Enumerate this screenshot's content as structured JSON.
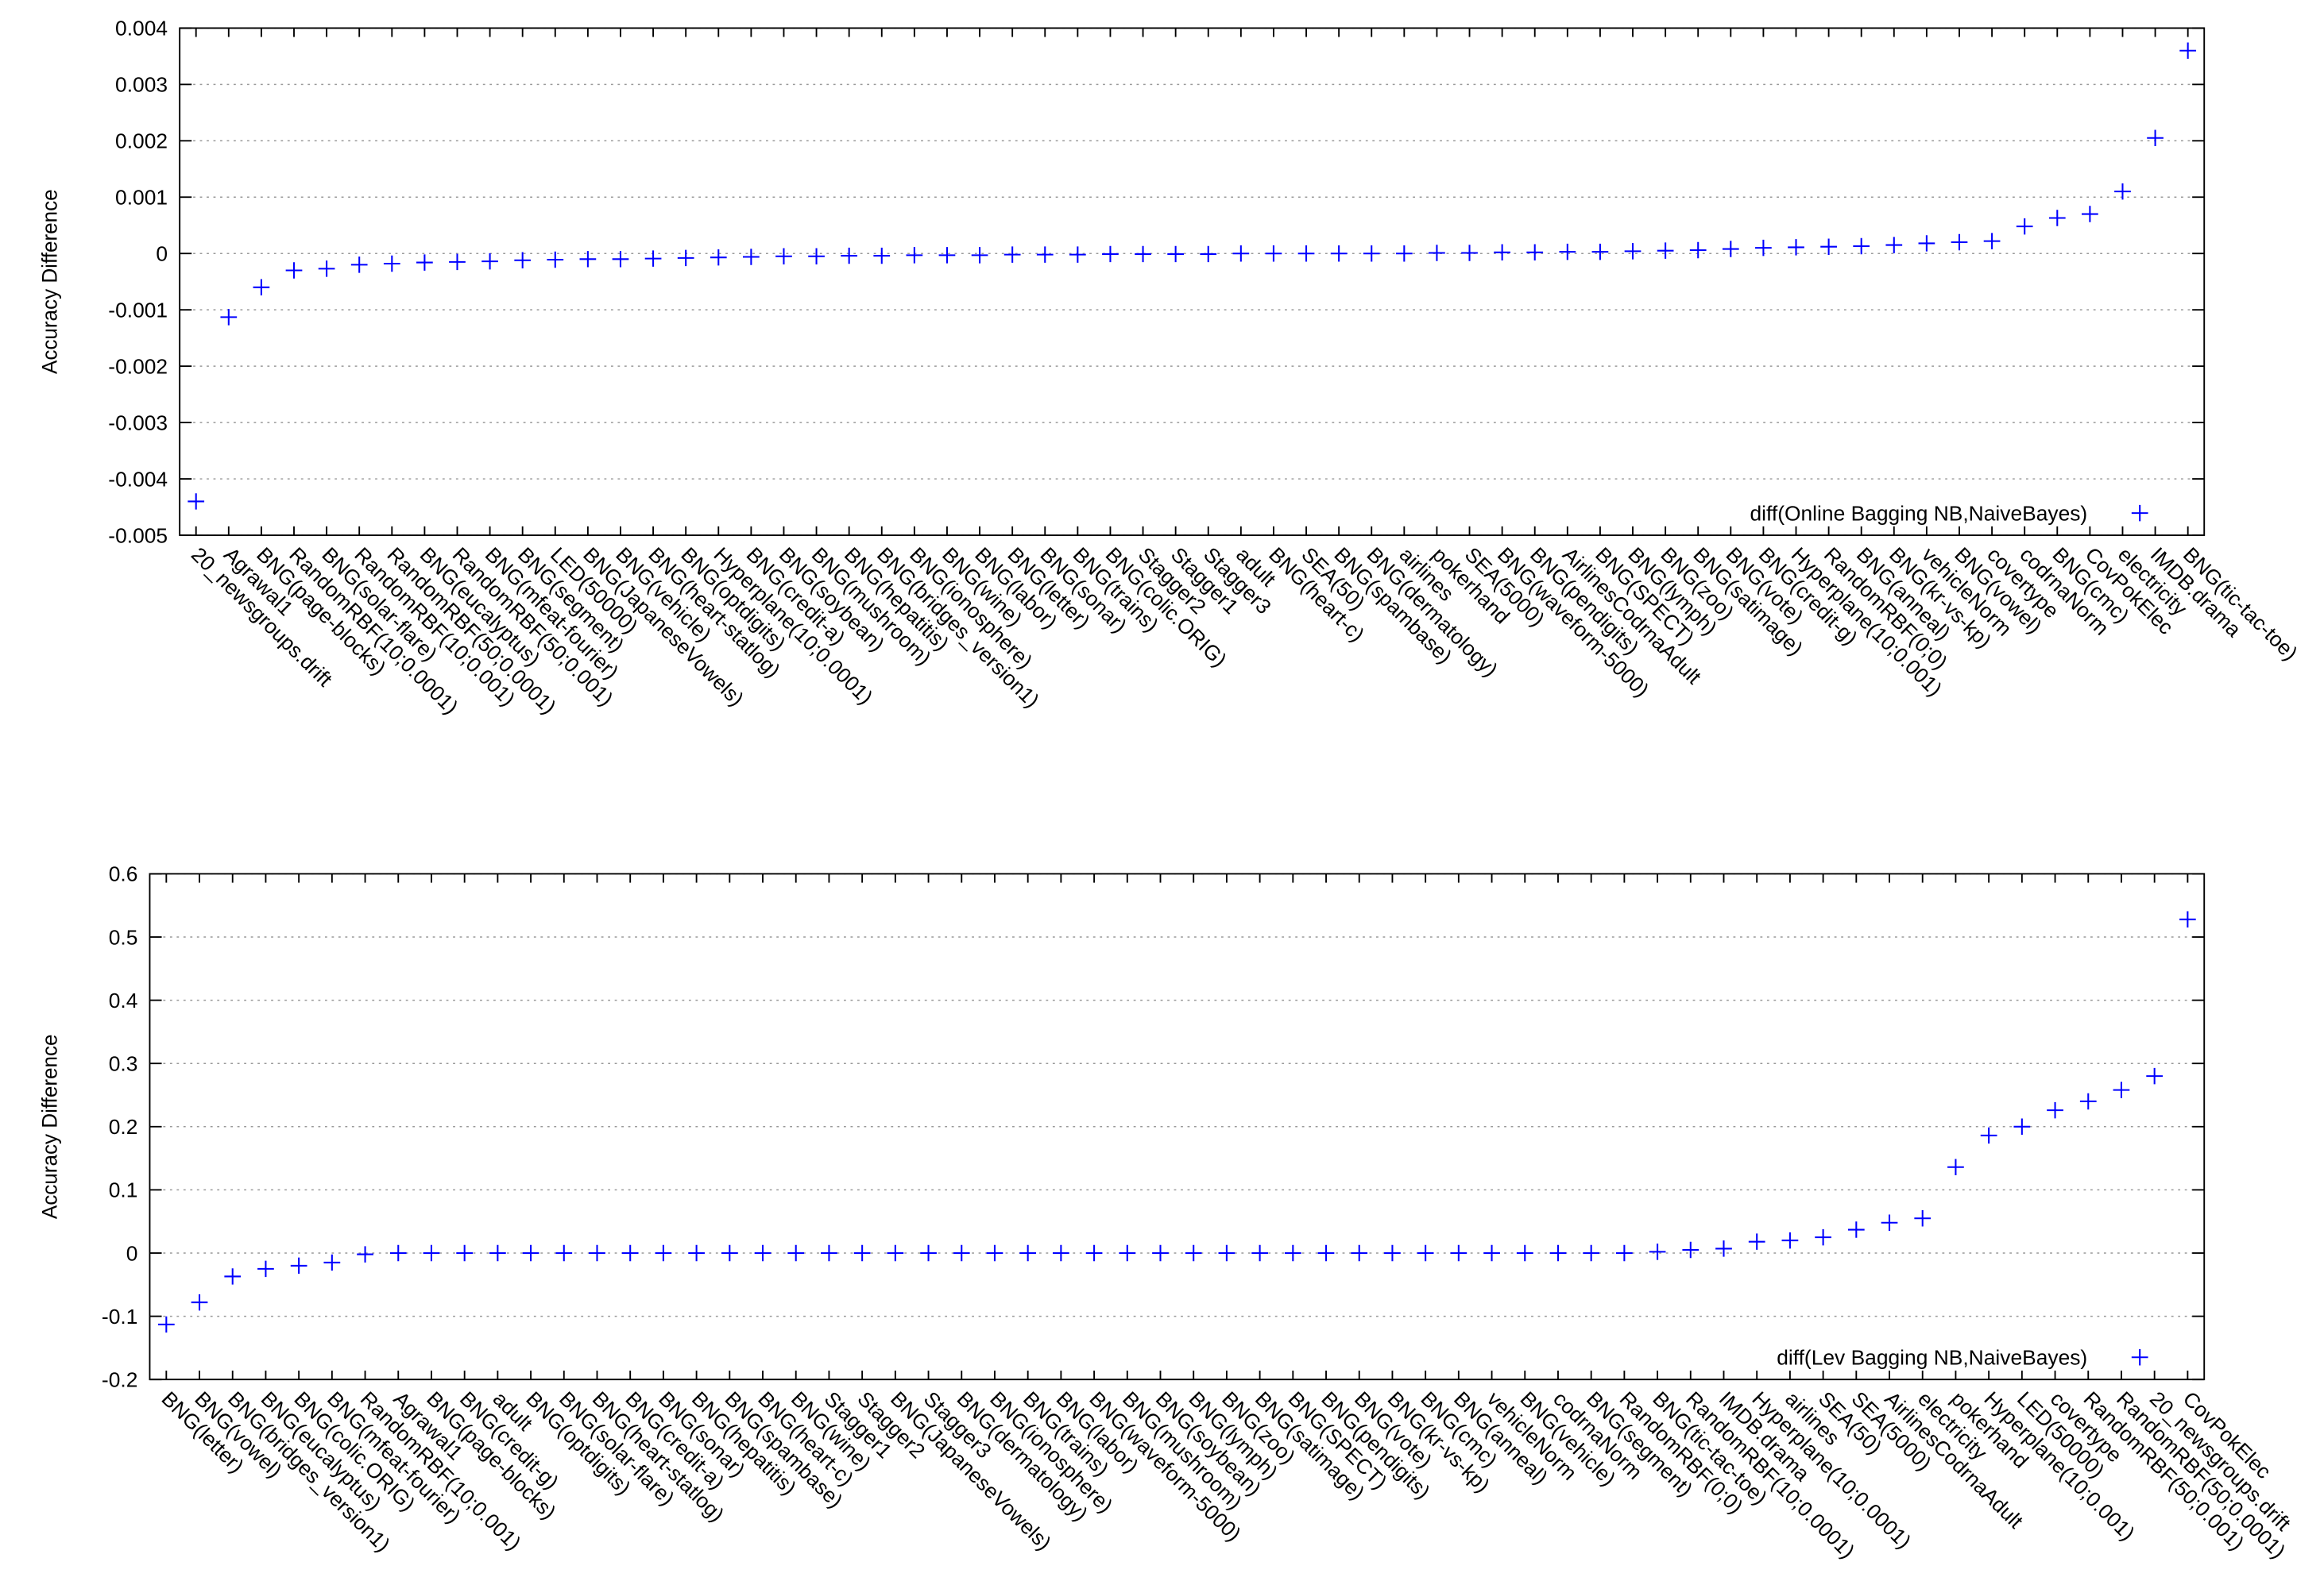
{
  "chart_data": [
    {
      "type": "scatter",
      "ylabel": "Accuracy Difference",
      "categories": [
        "20_newsgroups.drift",
        "Agrawal1",
        "BNG(page-blocks)",
        "RandomRBF(10;0.0001)",
        "BNG(solar-flare)",
        "RandomRBF(10;0.001)",
        "RandomRBF(50;0.0001)",
        "BNG(eucalyptus)",
        "RandomRBF(50;0.001)",
        "BNG(mfeat-fourier)",
        "BNG(segment)",
        "LED(50000)",
        "BNG(JapaneseVowels)",
        "BNG(vehicle)",
        "BNG(heart-statlog)",
        "BNG(optdigits)",
        "Hyperplane(10;0.0001)",
        "BNG(credit-a)",
        "BNG(soybean)",
        "BNG(mushroom)",
        "BNG(hepatitis)",
        "BNG(bridges_version1)",
        "BNG(ionosphere)",
        "BNG(wine)",
        "BNG(labor)",
        "BNG(letter)",
        "BNG(sonar)",
        "BNG(trains)",
        "BNG(colic.ORIG)",
        "Stagger2",
        "Stagger1",
        "Stagger3",
        "adult",
        "BNG(heart-c)",
        "SEA(50)",
        "BNG(spambase)",
        "BNG(dermatology)",
        "airlines",
        "pokerhand",
        "SEA(5000)",
        "BNG(waveform-5000)",
        "BNG(pendigits)",
        "AirlinesCodrnaAdult",
        "BNG(SPECT)",
        "BNG(lymph)",
        "BNG(zoo)",
        "BNG(satimage)",
        "BNG(vote)",
        "BNG(credit-g)",
        "Hyperplane(10;0.001)",
        "RandomRBF(0;0)",
        "BNG(anneal)",
        "BNG(kr-vs-kp)",
        "vehicleNorm",
        "BNG(vowel)",
        "covertype",
        "codrnaNorm",
        "BNG(cmc)",
        "CovPokElec",
        "electricity",
        "IMDB.drama",
        "BNG(tic-tac-toe)"
      ],
      "series": [
        {
          "name": "diff(Online Bagging NB,NaiveBayes)",
          "color": "#0000ff",
          "values": [
            -0.0044,
            -0.00113,
            -0.0006,
            -0.0003,
            -0.00027,
            -0.0002,
            -0.00018,
            -0.00016,
            -0.00015,
            -0.00014,
            -0.00012,
            -0.00011,
            -0.0001,
            -0.0001,
            -9e-05,
            -8e-05,
            -7e-05,
            -6e-05,
            -5e-05,
            -5e-05,
            -4e-05,
            -4e-05,
            -3e-05,
            -3e-05,
            -3e-05,
            -2e-05,
            -2e-05,
            -2e-05,
            -1e-05,
            -1e-05,
            -1e-05,
            -1e-05,
            0,
            0,
            0,
            0,
            0,
            0,
            1e-05,
            1e-05,
            2e-05,
            2e-05,
            3e-05,
            3e-05,
            4e-05,
            5e-05,
            6e-05,
            8e-05,
            0.0001,
            0.00011,
            0.00012,
            0.00013,
            0.00015,
            0.00018,
            0.0002,
            0.00022,
            0.00048,
            0.00063,
            0.0007,
            0.0011,
            0.00205,
            0.0036
          ]
        }
      ],
      "ylim": [
        -0.005,
        0.004
      ],
      "yticks": [
        -0.005,
        -0.004,
        -0.003,
        -0.002,
        -0.001,
        0,
        0.001,
        0.002,
        0.003,
        0.004
      ],
      "grid": true,
      "legend": "lower right"
    },
    {
      "type": "scatter",
      "ylabel": "Accuracy Difference",
      "categories": [
        "BNG(letter)",
        "BNG(vowel)",
        "BNG(bridges_version1)",
        "BNG(eucalyptus)",
        "BNG(colic.ORIG)",
        "BNG(mfeat-fourier)",
        "RandomRBF(10;0.001)",
        "Agrawal1",
        "BNG(page-blocks)",
        "BNG(credit-g)",
        "adult",
        "BNG(optdigits)",
        "BNG(solar-flare)",
        "BNG(heart-statlog)",
        "BNG(credit-a)",
        "BNG(sonar)",
        "BNG(hepatitis)",
        "BNG(spambase)",
        "BNG(heart-c)",
        "BNG(wine)",
        "Stagger1",
        "Stagger2",
        "BNG(JapaneseVowels)",
        "Stagger3",
        "BNG(dermatology)",
        "BNG(ionosphere)",
        "BNG(trains)",
        "BNG(labor)",
        "BNG(waveform-5000)",
        "BNG(mushroom)",
        "BNG(soybean)",
        "BNG(lymph)",
        "BNG(zoo)",
        "BNG(satimage)",
        "BNG(SPECT)",
        "BNG(pendigits)",
        "BNG(vote)",
        "BNG(kr-vs-kp)",
        "BNG(cmc)",
        "BNG(anneal)",
        "vehicleNorm",
        "BNG(vehicle)",
        "codrnaNorm",
        "BNG(segment)",
        "RandomRBF(0;0)",
        "BNG(tic-tac-toe)",
        "RandomRBF(10;0.0001)",
        "IMDB.drama",
        "Hyperplane(10;0.0001)",
        "airlines",
        "SEA(50)",
        "SEA(5000)",
        "AirlinesCodrnaAdult",
        "electricity",
        "pokerhand",
        "Hyperplane(10;0.001)",
        "LED(50000)",
        "covertype",
        "RandomRBF(50;0.001)",
        "RandomRBF(50;0.0001)",
        "20_newsgroups.drift",
        "CovPokElec"
      ],
      "series": [
        {
          "name": "diff(Lev Bagging NB,NaiveBayes)",
          "color": "#0000ff",
          "values": [
            -0.113,
            -0.078,
            -0.037,
            -0.025,
            -0.02,
            -0.015,
            -0.002,
            0,
            0,
            0,
            0,
            0,
            0,
            0,
            0,
            0,
            0,
            0,
            0,
            0,
            0,
            0,
            0,
            0,
            0,
            0,
            0,
            0,
            0,
            0,
            0,
            0,
            0,
            0,
            0,
            0,
            0,
            0,
            0,
            0,
            0,
            0,
            0,
            0,
            0,
            0.002,
            0.005,
            0.007,
            0.018,
            0.02,
            0.025,
            0.037,
            0.048,
            0.055,
            0.136,
            0.186,
            0.2,
            0.226,
            0.24,
            0.258,
            0.28,
            0.528
          ]
        }
      ],
      "ylim": [
        -0.2,
        0.6
      ],
      "yticks": [
        -0.2,
        -0.1,
        0,
        0.1,
        0.2,
        0.3,
        0.4,
        0.5,
        0.6
      ],
      "grid": true,
      "legend": "lower right"
    }
  ]
}
